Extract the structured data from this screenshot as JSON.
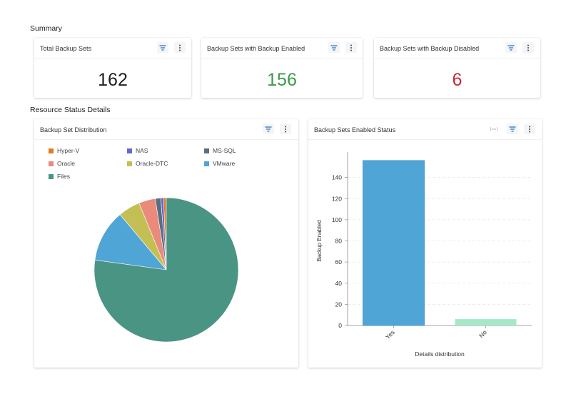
{
  "summary": {
    "title": "Summary",
    "cards": [
      {
        "title": "Total Backup Sets",
        "value": "162",
        "color": "#1f1f1f"
      },
      {
        "title": "Backup Sets with Backup Enabled",
        "value": "156",
        "color": "#3c9a48"
      },
      {
        "title": "Backup Sets with Backup Disabled",
        "value": "6",
        "color": "#c8283a"
      }
    ]
  },
  "resource": {
    "title": "Resource Status Details",
    "distribution_title": "Backup Set Distribution",
    "status_title": "Backup Sets Enabled Status"
  },
  "chart_data": [
    {
      "type": "pie",
      "title": "Backup Set Distribution",
      "legend_position": "top",
      "slices": [
        {
          "label": "Hyper-V",
          "value": 1,
          "color": "#e07b1f"
        },
        {
          "label": "NAS",
          "value": 1,
          "color": "#6767c9"
        },
        {
          "label": "MS-SQL",
          "value": 2,
          "color": "#5a6e80"
        },
        {
          "label": "Oracle",
          "value": 6,
          "color": "#e98a7b"
        },
        {
          "label": "Oracle-DTC",
          "value": 8,
          "color": "#c3bf55"
        },
        {
          "label": "VMware",
          "value": 19,
          "color": "#4fa5d5"
        },
        {
          "label": "Files",
          "value": 125,
          "color": "#4a9484"
        }
      ]
    },
    {
      "type": "bar",
      "title": "Backup Sets Enabled Status",
      "categories": [
        "Yes",
        "No"
      ],
      "values": [
        156,
        6
      ],
      "colors": [
        "#4fa5d5",
        "#a5e8c8"
      ],
      "xlabel": "Details distribution",
      "ylabel": "Backup Enabled",
      "ylim": [
        0,
        160
      ],
      "yticks": [
        0,
        20,
        40,
        60,
        80,
        100,
        120,
        140
      ],
      "grid": true
    }
  ]
}
